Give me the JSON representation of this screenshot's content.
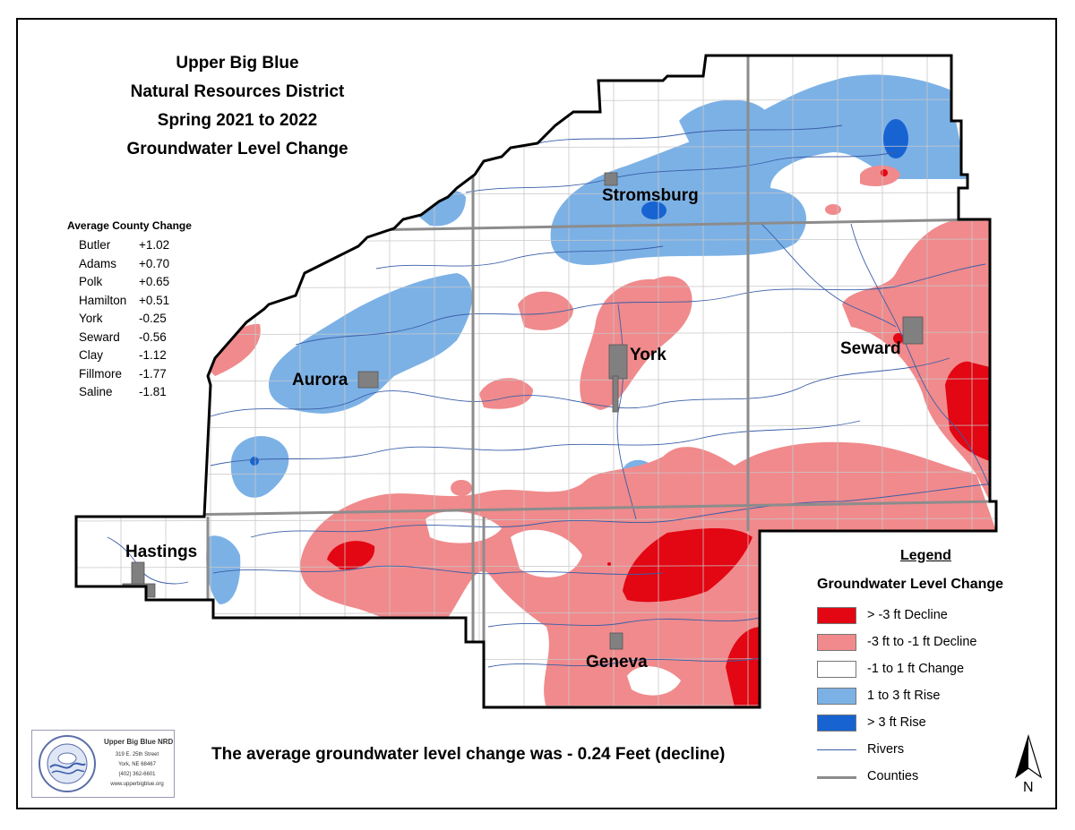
{
  "title": {
    "line1": "Upper Big Blue",
    "line2": "Natural Resources District",
    "line3": "Spring 2021 to 2022",
    "line4": "Groundwater Level Change"
  },
  "average_county_change": {
    "heading": "Average County Change",
    "rows": [
      {
        "county": "Butler",
        "value": "+1.02"
      },
      {
        "county": "Adams",
        "value": "+0.70"
      },
      {
        "county": "Polk",
        "value": "+0.65"
      },
      {
        "county": "Hamilton",
        "value": "+0.51"
      },
      {
        "county": "York",
        "value": "-0.25"
      },
      {
        "county": "Seward",
        "value": "-0.56"
      },
      {
        "county": "Clay",
        "value": "-1.12"
      },
      {
        "county": "Fillmore",
        "value": "-1.77"
      },
      {
        "county": "Saline",
        "value": "-1.81"
      }
    ]
  },
  "cities": {
    "stromsburg": "Stromsburg",
    "york": "York",
    "seward": "Seward",
    "aurora": "Aurora",
    "hastings": "Hastings",
    "geneva": "Geneva"
  },
  "legend": {
    "title": "Legend",
    "subtitle": "Groundwater Level Change",
    "items": [
      {
        "label": "> -3 ft Decline",
        "color": "#e30613"
      },
      {
        "label": "-3 ft to -1 ft Decline",
        "color": "#f08a8c"
      },
      {
        "label": "-1 to 1 ft Change",
        "color": "#ffffff"
      },
      {
        "label": "1 to 3 ft Rise",
        "color": "#7cb1e6"
      },
      {
        "label": "> 3 ft Rise",
        "color": "#1763d1"
      }
    ],
    "rivers_label": "Rivers",
    "counties_label": "Counties"
  },
  "summary": "The average groundwater level change was - 0.24 Feet (decline)",
  "logo": {
    "name": "Upper Big Blue NRD",
    "line1": "319 E. 25th Street",
    "line2": "York, NE 68467",
    "line3": "(402) 362-6601",
    "line4": "www.upperbigblue.org"
  },
  "north_label": "N",
  "colors": {
    "strong_decline": "#e30613",
    "decline": "#f08a8c",
    "rise": "#7cb1e6",
    "strong_rise": "#1763d1",
    "river": "#3a5ea8",
    "county_line": "#8c8c8c"
  }
}
